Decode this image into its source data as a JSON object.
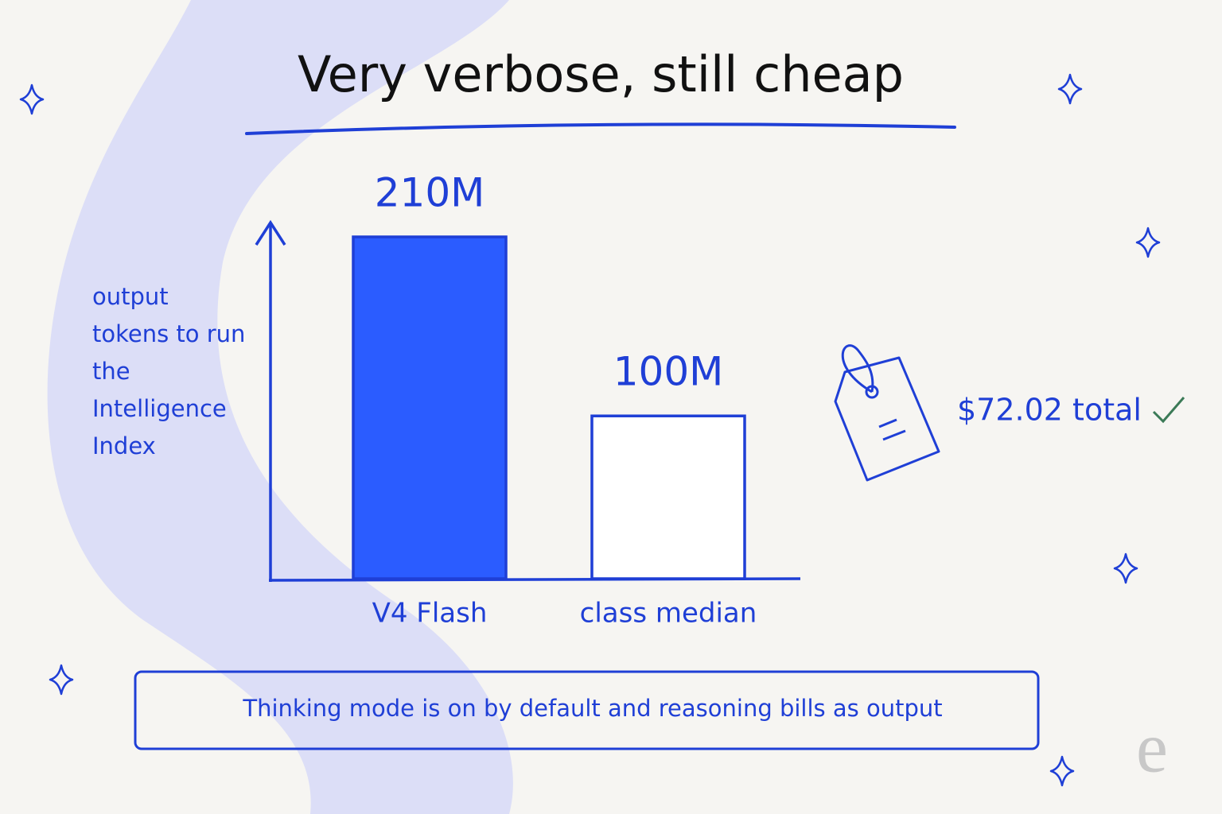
{
  "chart_data": {
    "type": "bar",
    "title": "Very verbose, still cheap",
    "ylabel": "output tokens to run the Intelligence Index",
    "categories": [
      "V4 Flash",
      "class median"
    ],
    "values": [
      210,
      100
    ],
    "value_labels": [
      "210M",
      "100M"
    ],
    "colors": [
      "#2b5cff",
      "#ffffff"
    ],
    "edge_color": "#1f3fd6",
    "ylim": [
      0,
      210
    ],
    "annotations": [
      "$72.02 total",
      "Thinking mode is on by default and reasoning bills as output"
    ],
    "logo": "e"
  }
}
